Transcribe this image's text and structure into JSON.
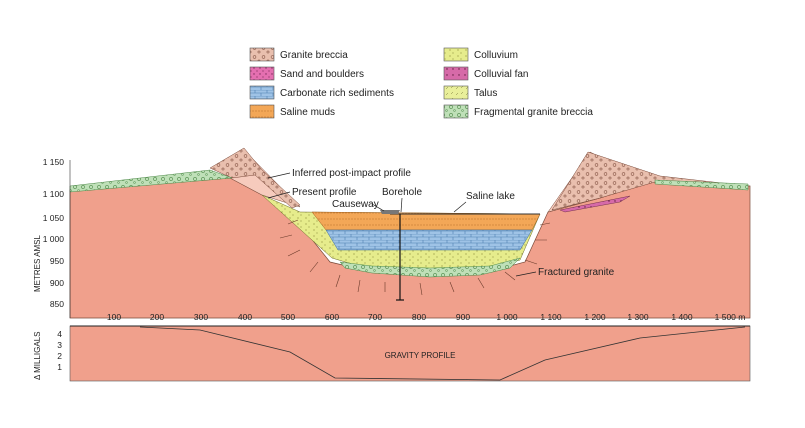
{
  "legend": [
    {
      "label": "Granite breccia",
      "pattern": "granite-breccia"
    },
    {
      "label": "Sand and boulders",
      "pattern": "sand-boulders"
    },
    {
      "label": "Carbonate rich sediments",
      "pattern": "carbonate"
    },
    {
      "label": "Saline muds",
      "pattern": "saline-muds"
    },
    {
      "label": "Colluvium",
      "pattern": "colluvium"
    },
    {
      "label": "Colluvial fan",
      "pattern": "colluvial-fan"
    },
    {
      "label": "Talus",
      "pattern": "talus"
    },
    {
      "label": "Fragmental granite breccia",
      "pattern": "fragmental-breccia"
    }
  ],
  "annotations": {
    "inferred": "Inferred post-impact profile",
    "present": "Present profile",
    "borehole": "Borehole",
    "causeway": "Causeway",
    "saline_lake": "Saline lake",
    "fractured": "Fractured granite",
    "gravity_profile": "GRAVITY PROFILE"
  },
  "axes": {
    "elevation_label": "METRES AMSL",
    "elevation_ticks": [
      "1 150",
      "1 100",
      "1 050",
      "1 000",
      "950",
      "900",
      "850"
    ],
    "distance_ticks": [
      "100",
      "200",
      "300",
      "400",
      "500",
      "600",
      "700",
      "800",
      "900",
      "1 000",
      "1 100",
      "1 200",
      "1 300",
      "1 400",
      "1 500 m"
    ],
    "gravity_label": "Δ MILLIGALS",
    "gravity_ticks": [
      "4",
      "3",
      "2",
      "1"
    ]
  },
  "colors": {
    "granite": "#f0a08c",
    "granite_light": "#f6cbbd",
    "breccia": "#e8b8a4",
    "colluvium": "#e6ec8c",
    "saline_muds": "#f3a757",
    "carbonate": "#9fc3e6",
    "sand_boulders": "#e46fb0",
    "fragmental": "#bfe0b8"
  }
}
